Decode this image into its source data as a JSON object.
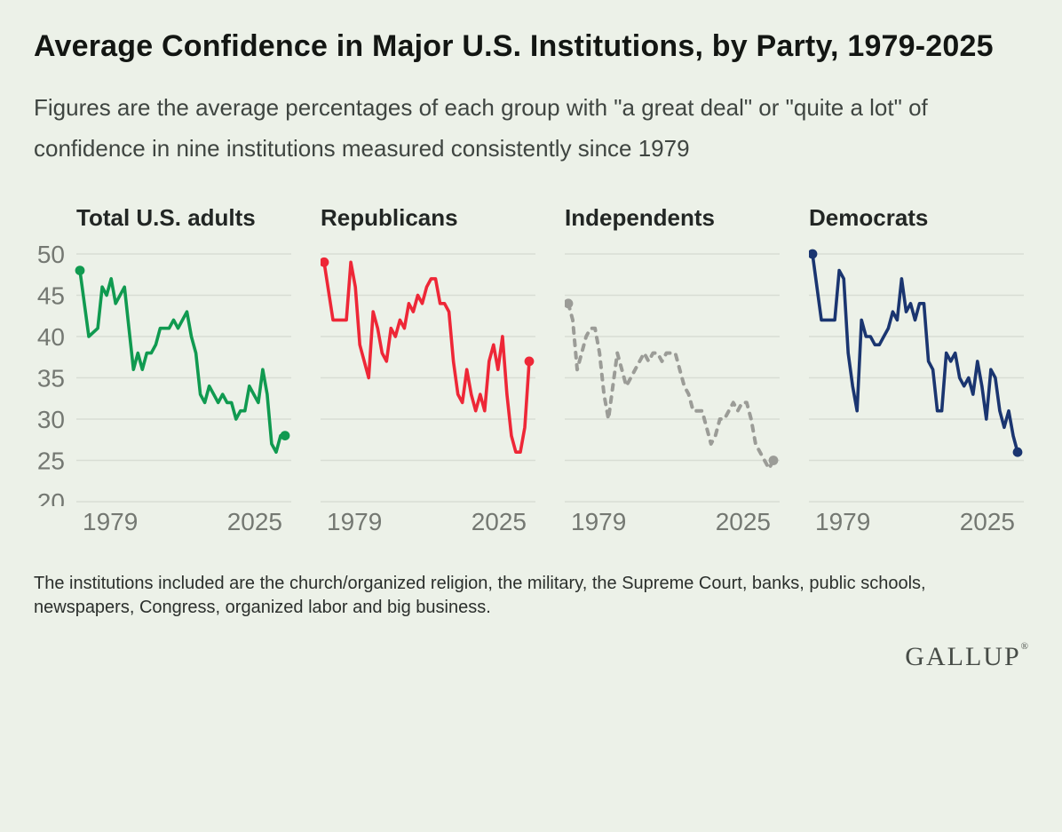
{
  "page": {
    "title": "Average Confidence in Major U.S. Institutions, by Party, 1979-2025",
    "subtitle": "Figures are the average percentages of each group with \"a great deal\" or \"quite a lot\" of confidence in nine institutions measured consistently since 1979",
    "footnote": "The institutions included are the church/organized religion, the military, the Supreme Court, banks, public schools, newspapers, Congress, organized labor and big business.",
    "logo": "GALLUP",
    "logo_mark": "®"
  },
  "colors": {
    "background": "#ecf1e8",
    "gridline": "#d8ddd4",
    "axis_text": "#747872",
    "total_adults": "#109a50",
    "republicans": "#ee2737",
    "independents": "#9b9c97",
    "democrats": "#1a3570"
  },
  "chart_data": {
    "type": "line",
    "title": "Average Confidence in Major U.S. Institutions, by Party, 1979-2025",
    "ylabel": "",
    "xlabel": "",
    "ylim": [
      20,
      50
    ],
    "yticks": [
      50,
      45,
      40,
      35,
      30,
      25,
      20
    ],
    "xlim": [
      1979,
      2025
    ],
    "xtick_labels": [
      "1979",
      "2025"
    ],
    "grid": true,
    "legend_position": "panel-titles",
    "panels": [
      {
        "id": "total-us-adults",
        "label": "Total U.S. adults",
        "color": "#109a50",
        "line_style": "solid",
        "endpoint_dots": true,
        "first_value": 48,
        "last_value": 28,
        "points": [
          [
            1979,
            48
          ],
          [
            1981,
            40
          ],
          [
            1983,
            41
          ],
          [
            1984,
            46
          ],
          [
            1985,
            45
          ],
          [
            1986,
            47
          ],
          [
            1987,
            44
          ],
          [
            1989,
            46
          ],
          [
            1990,
            41
          ],
          [
            1991,
            36
          ],
          [
            1992,
            38
          ],
          [
            1993,
            36
          ],
          [
            1994,
            38
          ],
          [
            1995,
            38
          ],
          [
            1996,
            39
          ],
          [
            1997,
            41
          ],
          [
            1998,
            41
          ],
          [
            1999,
            41
          ],
          [
            2000,
            42
          ],
          [
            2001,
            41
          ],
          [
            2002,
            42
          ],
          [
            2003,
            43
          ],
          [
            2004,
            40
          ],
          [
            2005,
            38
          ],
          [
            2006,
            33
          ],
          [
            2007,
            32
          ],
          [
            2008,
            34
          ],
          [
            2009,
            33
          ],
          [
            2010,
            32
          ],
          [
            2011,
            33
          ],
          [
            2012,
            32
          ],
          [
            2013,
            32
          ],
          [
            2014,
            30
          ],
          [
            2015,
            31
          ],
          [
            2016,
            31
          ],
          [
            2017,
            34
          ],
          [
            2018,
            33
          ],
          [
            2019,
            32
          ],
          [
            2020,
            36
          ],
          [
            2021,
            33
          ],
          [
            2022,
            27
          ],
          [
            2023,
            26
          ],
          [
            2024,
            28
          ],
          [
            2025,
            28
          ]
        ]
      },
      {
        "id": "republicans",
        "label": "Republicans",
        "color": "#ee2737",
        "line_style": "solid",
        "endpoint_dots": true,
        "first_value": 49,
        "last_value": 37,
        "points": [
          [
            1979,
            49
          ],
          [
            1981,
            42
          ],
          [
            1983,
            42
          ],
          [
            1984,
            42
          ],
          [
            1985,
            49
          ],
          [
            1986,
            46
          ],
          [
            1987,
            39
          ],
          [
            1989,
            35
          ],
          [
            1990,
            43
          ],
          [
            1991,
            41
          ],
          [
            1992,
            38
          ],
          [
            1993,
            37
          ],
          [
            1994,
            41
          ],
          [
            1995,
            40
          ],
          [
            1996,
            42
          ],
          [
            1997,
            41
          ],
          [
            1998,
            44
          ],
          [
            1999,
            43
          ],
          [
            2000,
            45
          ],
          [
            2001,
            44
          ],
          [
            2002,
            46
          ],
          [
            2003,
            47
          ],
          [
            2004,
            47
          ],
          [
            2005,
            44
          ],
          [
            2006,
            44
          ],
          [
            2007,
            43
          ],
          [
            2008,
            37
          ],
          [
            2009,
            33
          ],
          [
            2010,
            32
          ],
          [
            2011,
            36
          ],
          [
            2012,
            33
          ],
          [
            2013,
            31
          ],
          [
            2014,
            33
          ],
          [
            2015,
            31
          ],
          [
            2016,
            37
          ],
          [
            2017,
            39
          ],
          [
            2018,
            36
          ],
          [
            2019,
            40
          ],
          [
            2020,
            33
          ],
          [
            2021,
            28
          ],
          [
            2022,
            26
          ],
          [
            2023,
            26
          ],
          [
            2024,
            29
          ],
          [
            2025,
            37
          ]
        ]
      },
      {
        "id": "independents",
        "label": "Independents",
        "color": "#9b9c97",
        "line_style": "dashed",
        "endpoint_dots": true,
        "first_value": 44,
        "last_value": 25,
        "points": [
          [
            1979,
            44
          ],
          [
            1980,
            42
          ],
          [
            1981,
            36
          ],
          [
            1982,
            38
          ],
          [
            1983,
            40
          ],
          [
            1984,
            41
          ],
          [
            1985,
            41
          ],
          [
            1986,
            38
          ],
          [
            1987,
            33
          ],
          [
            1988,
            30
          ],
          [
            1989,
            34
          ],
          [
            1990,
            38
          ],
          [
            1991,
            36
          ],
          [
            1992,
            34
          ],
          [
            1993,
            35
          ],
          [
            1994,
            36
          ],
          [
            1995,
            37
          ],
          [
            1996,
            38
          ],
          [
            1997,
            37
          ],
          [
            1998,
            38
          ],
          [
            1999,
            38
          ],
          [
            2000,
            37
          ],
          [
            2001,
            38
          ],
          [
            2002,
            38
          ],
          [
            2003,
            38
          ],
          [
            2004,
            36
          ],
          [
            2005,
            34
          ],
          [
            2006,
            33
          ],
          [
            2007,
            31
          ],
          [
            2008,
            31
          ],
          [
            2009,
            31
          ],
          [
            2010,
            29
          ],
          [
            2011,
            27
          ],
          [
            2012,
            28
          ],
          [
            2013,
            30
          ],
          [
            2014,
            30
          ],
          [
            2015,
            31
          ],
          [
            2016,
            32
          ],
          [
            2017,
            31
          ],
          [
            2018,
            32
          ],
          [
            2019,
            32
          ],
          [
            2020,
            30
          ],
          [
            2021,
            27
          ],
          [
            2022,
            26
          ],
          [
            2023,
            25
          ],
          [
            2024,
            24
          ],
          [
            2025,
            25
          ]
        ]
      },
      {
        "id": "democrats",
        "label": "Democrats",
        "color": "#1a3570",
        "line_style": "solid",
        "endpoint_dots": true,
        "first_value": 50,
        "last_value": 26,
        "points": [
          [
            1979,
            50
          ],
          [
            1981,
            42
          ],
          [
            1982,
            42
          ],
          [
            1983,
            42
          ],
          [
            1984,
            42
          ],
          [
            1985,
            48
          ],
          [
            1986,
            47
          ],
          [
            1987,
            38
          ],
          [
            1988,
            34
          ],
          [
            1989,
            31
          ],
          [
            1990,
            42
          ],
          [
            1991,
            40
          ],
          [
            1992,
            40
          ],
          [
            1993,
            39
          ],
          [
            1994,
            39
          ],
          [
            1995,
            40
          ],
          [
            1996,
            41
          ],
          [
            1997,
            43
          ],
          [
            1998,
            42
          ],
          [
            1999,
            47
          ],
          [
            2000,
            43
          ],
          [
            2001,
            44
          ],
          [
            2002,
            42
          ],
          [
            2003,
            44
          ],
          [
            2004,
            44
          ],
          [
            2005,
            37
          ],
          [
            2006,
            36
          ],
          [
            2007,
            31
          ],
          [
            2008,
            31
          ],
          [
            2009,
            38
          ],
          [
            2010,
            37
          ],
          [
            2011,
            38
          ],
          [
            2012,
            35
          ],
          [
            2013,
            34
          ],
          [
            2014,
            35
          ],
          [
            2015,
            33
          ],
          [
            2016,
            37
          ],
          [
            2017,
            34
          ],
          [
            2018,
            30
          ],
          [
            2019,
            36
          ],
          [
            2020,
            35
          ],
          [
            2021,
            31
          ],
          [
            2022,
            29
          ],
          [
            2023,
            31
          ],
          [
            2024,
            28
          ],
          [
            2025,
            26
          ]
        ]
      }
    ]
  }
}
